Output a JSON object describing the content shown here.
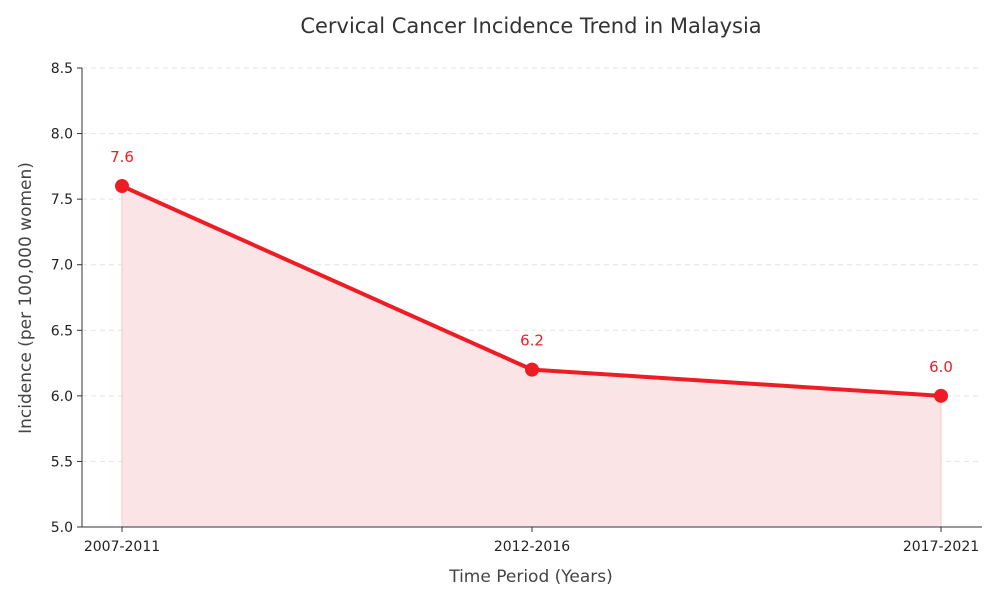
{
  "chart_data": {
    "type": "line",
    "title": "Cervical Cancer Incidence Trend in Malaysia",
    "xlabel": "Time Period (Years)",
    "ylabel": "Incidence (per 100,000 women)",
    "categories": [
      "2007-2011",
      "2012-2016",
      "2017-2021"
    ],
    "values": [
      7.6,
      6.2,
      6.0
    ],
    "data_labels": [
      "7.6",
      "6.2",
      "6.0"
    ],
    "ylim": [
      5.0,
      8.5
    ],
    "yticks": [
      "5.0",
      "5.5",
      "6.0",
      "6.5",
      "7.0",
      "7.5",
      "8.0",
      "8.5"
    ],
    "grid": "horizontal dashed",
    "area_fill": true,
    "legend": "none",
    "colors": {
      "line": "#ee1c25",
      "fill": "#fbe4e5",
      "label": "#ee1c25",
      "text": "#333333"
    }
  }
}
